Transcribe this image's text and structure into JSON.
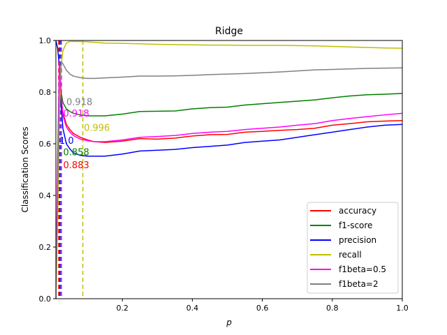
{
  "chart_data": {
    "type": "line",
    "title": "Ridge",
    "xlabel": "p",
    "ylabel": "Classification Scores",
    "xlim": [
      0.01,
      1.0
    ],
    "ylim": [
      0.0,
      1.0
    ],
    "x_ticks": [
      "0.2",
      "0.4",
      "0.6",
      "0.8",
      "1.0"
    ],
    "y_ticks": [
      "0.0",
      "0.2",
      "0.4",
      "0.6",
      "0.8",
      "1.0"
    ],
    "grid": false,
    "legend_position": "lower-right",
    "series": [
      {
        "name": "accuracy",
        "color": "#ff0000",
        "x": [
          0.01,
          0.015,
          0.02,
          0.025,
          0.03,
          0.04,
          0.05,
          0.06,
          0.08,
          0.1,
          0.12,
          0.15,
          0.2,
          0.25,
          0.3,
          0.35,
          0.4,
          0.45,
          0.5,
          0.55,
          0.6,
          0.65,
          0.7,
          0.75,
          0.8,
          0.85,
          0.9,
          0.95,
          1.0
        ],
        "values": [
          0.0,
          0.5,
          0.883,
          0.78,
          0.72,
          0.675,
          0.655,
          0.64,
          0.625,
          0.615,
          0.608,
          0.605,
          0.61,
          0.62,
          0.618,
          0.622,
          0.63,
          0.635,
          0.636,
          0.645,
          0.648,
          0.652,
          0.655,
          0.66,
          0.672,
          0.678,
          0.685,
          0.688,
          0.69
        ]
      },
      {
        "name": "f1-score",
        "color": "#008000",
        "x": [
          0.01,
          0.015,
          0.02,
          0.025,
          0.03,
          0.04,
          0.05,
          0.06,
          0.08,
          0.1,
          0.12,
          0.15,
          0.2,
          0.25,
          0.3,
          0.35,
          0.4,
          0.45,
          0.5,
          0.55,
          0.6,
          0.65,
          0.7,
          0.75,
          0.8,
          0.85,
          0.9,
          0.95,
          1.0
        ],
        "values": [
          0.0,
          0.45,
          0.858,
          0.8,
          0.76,
          0.735,
          0.725,
          0.718,
          0.712,
          0.708,
          0.708,
          0.708,
          0.715,
          0.725,
          0.726,
          0.727,
          0.735,
          0.74,
          0.742,
          0.75,
          0.755,
          0.76,
          0.765,
          0.77,
          0.778,
          0.785,
          0.79,
          0.792,
          0.795
        ]
      },
      {
        "name": "precision",
        "color": "#0000ff",
        "x": [
          0.01,
          0.015,
          0.02,
          0.025,
          0.03,
          0.04,
          0.05,
          0.06,
          0.08,
          0.1,
          0.12,
          0.15,
          0.2,
          0.25,
          0.3,
          0.35,
          0.4,
          0.45,
          0.5,
          0.55,
          0.6,
          0.65,
          0.7,
          0.75,
          0.8,
          0.85,
          0.9,
          0.95,
          1.0
        ],
        "values": [
          1.0,
          0.97,
          0.9,
          0.75,
          0.66,
          0.6,
          0.58,
          0.565,
          0.555,
          0.552,
          0.552,
          0.552,
          0.56,
          0.572,
          0.575,
          0.578,
          0.585,
          0.59,
          0.595,
          0.605,
          0.61,
          0.615,
          0.625,
          0.635,
          0.645,
          0.655,
          0.665,
          0.672,
          0.675
        ]
      },
      {
        "name": "recall",
        "color": "#bfbf00",
        "x": [
          0.01,
          0.015,
          0.02,
          0.025,
          0.03,
          0.04,
          0.05,
          0.06,
          0.08,
          0.1,
          0.12,
          0.15,
          0.2,
          0.25,
          0.3,
          0.35,
          0.4,
          0.45,
          0.5,
          0.55,
          0.6,
          0.65,
          0.7,
          0.75,
          0.8,
          0.85,
          0.9,
          0.95,
          1.0
        ],
        "values": [
          0.0,
          0.3,
          0.7,
          0.9,
          0.96,
          0.99,
          0.996,
          0.996,
          0.996,
          0.995,
          0.993,
          0.99,
          0.989,
          0.987,
          0.985,
          0.984,
          0.983,
          0.982,
          0.982,
          0.981,
          0.981,
          0.981,
          0.98,
          0.979,
          0.977,
          0.975,
          0.973,
          0.971,
          0.97
        ]
      },
      {
        "name": "f1beta=0.5",
        "color": "#ff00ff",
        "x": [
          0.01,
          0.015,
          0.02,
          0.025,
          0.03,
          0.04,
          0.05,
          0.06,
          0.08,
          0.1,
          0.12,
          0.15,
          0.2,
          0.25,
          0.3,
          0.35,
          0.4,
          0.45,
          0.5,
          0.55,
          0.6,
          0.65,
          0.7,
          0.75,
          0.8,
          0.85,
          0.9,
          0.95,
          1.0
        ],
        "values": [
          0.0,
          0.55,
          0.918,
          0.8,
          0.71,
          0.665,
          0.645,
          0.632,
          0.618,
          0.612,
          0.608,
          0.608,
          0.615,
          0.625,
          0.628,
          0.632,
          0.64,
          0.645,
          0.648,
          0.655,
          0.66,
          0.665,
          0.672,
          0.678,
          0.69,
          0.698,
          0.705,
          0.712,
          0.718
        ]
      },
      {
        "name": "f1beta=2",
        "color": "#808080",
        "x": [
          0.01,
          0.015,
          0.02,
          0.025,
          0.03,
          0.04,
          0.05,
          0.06,
          0.08,
          0.1,
          0.12,
          0.15,
          0.2,
          0.25,
          0.3,
          0.35,
          0.4,
          0.45,
          0.5,
          0.55,
          0.6,
          0.65,
          0.7,
          0.75,
          0.8,
          0.85,
          0.9,
          0.95,
          1.0
        ],
        "values": [
          0.0,
          0.4,
          0.82,
          0.918,
          0.91,
          0.885,
          0.87,
          0.862,
          0.856,
          0.853,
          0.853,
          0.855,
          0.858,
          0.862,
          0.862,
          0.863,
          0.865,
          0.868,
          0.87,
          0.872,
          0.875,
          0.878,
          0.882,
          0.886,
          0.888,
          0.89,
          0.892,
          0.893,
          0.894
        ]
      }
    ],
    "vlines": [
      {
        "x": 0.018,
        "color": "#ff0000"
      },
      {
        "x": 0.021,
        "color": "#008000"
      },
      {
        "x": 0.022,
        "color": "#0000ff"
      },
      {
        "x": 0.025,
        "color": "#808080"
      },
      {
        "x": 0.026,
        "color": "#ff00ff"
      },
      {
        "x": 0.087,
        "color": "#bfbf00"
      }
    ],
    "annotations": [
      {
        "text": "0.918",
        "x": 0.04,
        "y": 0.75,
        "color": "#808080"
      },
      {
        "text": "0.918",
        "x": 0.031,
        "y": 0.705,
        "color": "#ff00ff"
      },
      {
        "text": "0.996",
        "x": 0.09,
        "y": 0.65,
        "color": "#bfbf00"
      },
      {
        "text": "1.0",
        "x": 0.02,
        "y": 0.6,
        "color": "#0000ff"
      },
      {
        "text": "0.858",
        "x": 0.031,
        "y": 0.555,
        "color": "#008000"
      },
      {
        "text": "0.883",
        "x": 0.031,
        "y": 0.505,
        "color": "#ff0000"
      }
    ]
  }
}
